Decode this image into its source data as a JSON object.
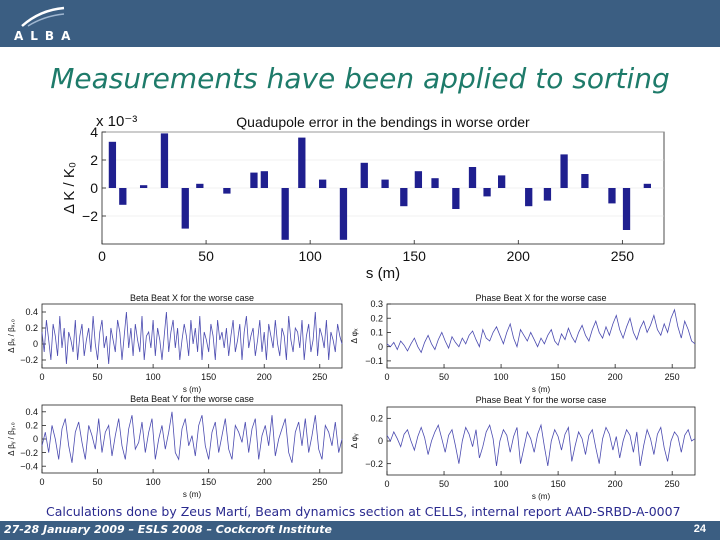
{
  "header": {
    "logo_text": "ALBA"
  },
  "slide": {
    "title": "Measurements have been applied to sorting",
    "caption": "Calculations done by Zeus Martí, Beam dynamics section at CELLS, internal report AAD-SRBD-A-0007",
    "footer_left": "27-28 January 2009 – ESLS 2008 – Cockcroft Institute",
    "page_number": "24"
  },
  "chart_data": [
    {
      "type": "bar",
      "title": "Quadupole error in the bendings in worse order",
      "xlabel": "s (m)",
      "ylabel": "Δ K / K₀",
      "y_multiplier": "x 10⁻³",
      "xlim": [
        0,
        270
      ],
      "ylim": [
        -4,
        4
      ],
      "xticks": [
        0,
        50,
        100,
        150,
        200,
        250
      ],
      "yticks": [
        -2,
        0,
        2,
        4
      ],
      "ytick_labels": [
        "−2",
        "0",
        "2",
        "4"
      ],
      "color": "#1f1f8f",
      "x": [
        5,
        10,
        20,
        30,
        40,
        47,
        60,
        73,
        78,
        88,
        96,
        106,
        116,
        126,
        136,
        145,
        152,
        160,
        170,
        178,
        185,
        192,
        205,
        214,
        222,
        232,
        245,
        252,
        262
      ],
      "values": [
        3.3,
        -1.2,
        0.2,
        3.9,
        -2.9,
        0.3,
        -0.4,
        1.1,
        1.2,
        -3.7,
        3.6,
        0.6,
        -3.7,
        1.8,
        0.6,
        -1.3,
        1.2,
        0.7,
        -1.5,
        1.5,
        -0.6,
        0.9,
        -1.3,
        -0.9,
        2.4,
        1.0,
        -1.1,
        -3.0,
        0.3
      ]
    },
    {
      "type": "line",
      "title": "Beta Beat X for the worse case",
      "xlabel": "s (m)",
      "ylabel": "Δ βₓ / βₓ,₀",
      "xlim": [
        0,
        270
      ],
      "ylim": [
        -0.3,
        0.5
      ],
      "xticks": [
        0,
        50,
        100,
        150,
        200,
        250
      ],
      "yticks": [
        -0.2,
        0,
        0.2,
        0.4
      ],
      "ytick_labels": [
        "−0.2",
        "0",
        "0.2",
        "0.4"
      ],
      "color": "#4b4bb0",
      "x": [
        0,
        2,
        4,
        6,
        8,
        10,
        12,
        14,
        16,
        18,
        20,
        22,
        24,
        26,
        28,
        30,
        32,
        34,
        36,
        38,
        40,
        42,
        44,
        46,
        48,
        50,
        52,
        54,
        56,
        58,
        60,
        62,
        64,
        66,
        68,
        70,
        72,
        74,
        76,
        78,
        80,
        82,
        84,
        86,
        88,
        90,
        92,
        94,
        96,
        98,
        100,
        102,
        104,
        106,
        108,
        110,
        112,
        114,
        116,
        118,
        120,
        122,
        124,
        126,
        128,
        130,
        132,
        134,
        136,
        138,
        140,
        142,
        144,
        146,
        148,
        150,
        152,
        154,
        156,
        158,
        160,
        162,
        164,
        166,
        168,
        170,
        172,
        174,
        176,
        178,
        180,
        182,
        184,
        186,
        188,
        190,
        192,
        194,
        196,
        198,
        200,
        202,
        204,
        206,
        208,
        210,
        212,
        214,
        216,
        218,
        220,
        222,
        224,
        226,
        228,
        230,
        232,
        234,
        236,
        238,
        240,
        242,
        244,
        246,
        248,
        250,
        252,
        254,
        256,
        258,
        260,
        262,
        264,
        266,
        268,
        270
      ],
      "values": [
        0.15,
        -0.1,
        0.3,
        0.05,
        -0.2,
        0.25,
        0.1,
        -0.15,
        0.35,
        -0.05,
        0.2,
        -0.25,
        0.15,
        0.05,
        -0.1,
        0.3,
        -0.2,
        0.1,
        0.25,
        -0.15,
        0.05,
        0.2,
        -0.1,
        0.35,
        0.0,
        -0.2,
        0.15,
        0.3,
        -0.05,
        0.1,
        -0.25,
        0.2,
        0.05,
        -0.1,
        0.3,
        0.15,
        -0.2,
        0.1,
        0.4,
        -0.05,
        0.2,
        -0.15,
        0.25,
        0.05,
        -0.1,
        0.35,
        -0.2,
        0.1,
        0.15,
        -0.05,
        0.3,
        -0.15,
        0.2,
        0.05,
        -0.2,
        0.1,
        0.4,
        -0.1,
        0.15,
        0.3,
        -0.05,
        0.2,
        -0.2,
        0.05,
        0.25,
        0.1,
        -0.15,
        0.3,
        0.0,
        0.2,
        -0.1,
        0.35,
        -0.2,
        0.15,
        0.05,
        -0.1,
        0.25,
        0.1,
        -0.2,
        0.3,
        0.05,
        0.15,
        -0.05,
        0.2,
        -0.15,
        0.1,
        0.3,
        -0.1,
        0.05,
        0.25,
        -0.2,
        0.15,
        0.35,
        -0.05,
        0.1,
        0.2,
        -0.15,
        0.05,
        0.3,
        -0.1,
        0.15,
        -0.2,
        0.25,
        0.1,
        -0.05,
        0.3,
        0.0,
        -0.15,
        0.2,
        0.1,
        -0.2,
        0.35,
        0.05,
        -0.1,
        0.2,
        0.15,
        -0.05,
        0.3,
        -0.2,
        0.1,
        0.25,
        -0.1,
        0.05,
        0.4,
        -0.15,
        0.2,
        0.1,
        -0.05,
        0.3,
        -0.2,
        0.15,
        0.05,
        -0.1,
        0.25,
        0.1,
        0.0
      ]
    },
    {
      "type": "line",
      "title": "Phase Beat X for the worse case",
      "xlabel": "s (m)",
      "ylabel": "Δ φₓ",
      "xlim": [
        0,
        270
      ],
      "ylim": [
        -0.15,
        0.3
      ],
      "xticks": [
        0,
        50,
        100,
        150,
        200,
        250
      ],
      "yticks": [
        -0.1,
        0,
        0.1,
        0.2,
        0.3
      ],
      "ytick_labels": [
        "−0.1",
        "0",
        "0.1",
        "0.2",
        "0.3"
      ],
      "color": "#4b4bb0",
      "x": [
        0,
        3,
        6,
        9,
        12,
        15,
        18,
        21,
        24,
        27,
        30,
        33,
        36,
        39,
        42,
        45,
        48,
        51,
        54,
        57,
        60,
        63,
        66,
        69,
        72,
        75,
        78,
        81,
        84,
        87,
        90,
        93,
        96,
        99,
        102,
        105,
        108,
        111,
        114,
        117,
        120,
        123,
        126,
        129,
        132,
        135,
        138,
        141,
        144,
        147,
        150,
        153,
        156,
        159,
        162,
        165,
        168,
        171,
        174,
        177,
        180,
        183,
        186,
        189,
        192,
        195,
        198,
        201,
        204,
        207,
        210,
        213,
        216,
        219,
        222,
        225,
        228,
        231,
        234,
        237,
        240,
        243,
        246,
        249,
        252,
        255,
        258,
        261,
        264,
        267,
        270
      ],
      "values": [
        0.02,
        0.0,
        0.03,
        -0.02,
        0.04,
        0.01,
        -0.03,
        0.02,
        0.06,
        0.0,
        -0.04,
        0.03,
        0.08,
        0.02,
        -0.02,
        0.05,
        0.1,
        0.04,
        -0.01,
        0.07,
        0.03,
        0.0,
        0.06,
        0.02,
        0.08,
        0.11,
        0.05,
        0.0,
        0.12,
        0.06,
        0.04,
        0.1,
        0.14,
        0.08,
        0.02,
        0.1,
        0.16,
        0.06,
        0.0,
        0.12,
        0.08,
        0.04,
        0.1,
        0.05,
        0.0,
        0.06,
        0.02,
        0.08,
        0.12,
        0.04,
        0.01,
        0.09,
        0.05,
        0.13,
        0.07,
        0.03,
        0.1,
        0.15,
        0.08,
        0.04,
        0.12,
        0.18,
        0.1,
        0.06,
        0.14,
        0.08,
        0.16,
        0.22,
        0.12,
        0.06,
        0.14,
        0.2,
        0.1,
        0.05,
        0.13,
        0.18,
        0.1,
        0.15,
        0.22,
        0.12,
        0.08,
        0.16,
        0.1,
        0.2,
        0.26,
        0.14,
        0.06,
        0.18,
        0.12,
        0.04,
        0.02
      ]
    },
    {
      "type": "line",
      "title": "Beta Beat Y for the worse case",
      "xlabel": "s (m)",
      "ylabel": "Δ βᵧ / βᵧ,₀",
      "xlim": [
        0,
        270
      ],
      "ylim": [
        -0.5,
        0.5
      ],
      "xticks": [
        0,
        50,
        100,
        150,
        200,
        250
      ],
      "yticks": [
        -0.4,
        -0.2,
        0,
        0.2,
        0.4
      ],
      "ytick_labels": [
        "−0.4",
        "−0.2",
        "0",
        "0.2",
        "0.4"
      ],
      "color": "#4b4bb0",
      "x": [
        0,
        3,
        6,
        9,
        12,
        15,
        18,
        21,
        24,
        27,
        30,
        33,
        36,
        39,
        42,
        45,
        48,
        51,
        54,
        57,
        60,
        63,
        66,
        69,
        72,
        75,
        78,
        81,
        84,
        87,
        90,
        93,
        96,
        99,
        102,
        105,
        108,
        111,
        114,
        117,
        120,
        123,
        126,
        129,
        132,
        135,
        138,
        141,
        144,
        147,
        150,
        153,
        156,
        159,
        162,
        165,
        168,
        171,
        174,
        177,
        180,
        183,
        186,
        189,
        192,
        195,
        198,
        201,
        204,
        207,
        210,
        213,
        216,
        219,
        222,
        225,
        228,
        231,
        234,
        237,
        240,
        243,
        246,
        249,
        252,
        255,
        258,
        261,
        264,
        267,
        270
      ],
      "values": [
        -0.1,
        0.1,
        -0.2,
        0.2,
        0.0,
        -0.3,
        0.15,
        0.3,
        -0.1,
        -0.35,
        0.1,
        0.25,
        -0.05,
        -0.3,
        0.2,
        0.05,
        -0.15,
        0.3,
        -0.2,
        0.1,
        0.2,
        -0.25,
        0.05,
        0.3,
        -0.1,
        -0.3,
        0.15,
        0.35,
        -0.15,
        -0.05,
        0.25,
        -0.2,
        0.1,
        0.3,
        -0.3,
        0.0,
        0.2,
        -0.15,
        0.1,
        0.4,
        -0.2,
        -0.3,
        0.15,
        0.3,
        -0.1,
        0.05,
        -0.25,
        0.2,
        0.35,
        -0.1,
        -0.3,
        0.1,
        0.25,
        -0.2,
        0.05,
        0.3,
        -0.15,
        -0.3,
        0.2,
        0.1,
        -0.05,
        0.25,
        -0.2,
        0.15,
        0.3,
        -0.3,
        0.05,
        0.2,
        -0.1,
        0.35,
        -0.25,
        0.0,
        0.15,
        0.3,
        -0.2,
        -0.35,
        0.1,
        0.25,
        -0.1,
        0.3,
        -0.2,
        0.05,
        0.35,
        -0.15,
        -0.3,
        0.2,
        0.1,
        -0.1,
        0.25,
        -0.2,
        0.0
      ]
    },
    {
      "type": "line",
      "title": "Phase Beat Y for the worse case",
      "xlabel": "s (m)",
      "ylabel": "Δ φᵧ",
      "xlim": [
        0,
        270
      ],
      "ylim": [
        -0.3,
        0.3
      ],
      "xticks": [
        0,
        50,
        100,
        150,
        200,
        250
      ],
      "yticks": [
        -0.2,
        0,
        0.2
      ],
      "ytick_labels": [
        "−0.2",
        "0",
        "0.2"
      ],
      "color": "#4b4bb0",
      "x": [
        0,
        3,
        6,
        9,
        12,
        15,
        18,
        21,
        24,
        27,
        30,
        33,
        36,
        39,
        42,
        45,
        48,
        51,
        54,
        57,
        60,
        63,
        66,
        69,
        72,
        75,
        78,
        81,
        84,
        87,
        90,
        93,
        96,
        99,
        102,
        105,
        108,
        111,
        114,
        117,
        120,
        123,
        126,
        129,
        132,
        135,
        138,
        141,
        144,
        147,
        150,
        153,
        156,
        159,
        162,
        165,
        168,
        171,
        174,
        177,
        180,
        183,
        186,
        189,
        192,
        195,
        198,
        201,
        204,
        207,
        210,
        213,
        216,
        219,
        222,
        225,
        228,
        231,
        234,
        237,
        240,
        243,
        246,
        249,
        252,
        255,
        258,
        261,
        264,
        267,
        270
      ],
      "values": [
        0.05,
        0.0,
        0.08,
        0.02,
        -0.05,
        0.06,
        0.1,
        0.0,
        -0.08,
        0.04,
        0.12,
        0.03,
        -0.12,
        0.0,
        0.08,
        0.14,
        0.02,
        -0.1,
        0.05,
        0.1,
        -0.04,
        -0.2,
        0.0,
        0.12,
        0.06,
        -0.05,
        0.1,
        -0.15,
        -0.05,
        0.08,
        0.14,
        0.02,
        -0.22,
        0.0,
        0.1,
        0.05,
        -0.1,
        0.04,
        0.12,
        -0.2,
        -0.06,
        0.08,
        0.02,
        -0.1,
        0.06,
        0.14,
        -0.05,
        -0.22,
        0.0,
        0.1,
        0.04,
        -0.08,
        0.06,
        0.12,
        -0.18,
        -0.04,
        0.08,
        0.02,
        -0.12,
        0.05,
        0.1,
        -0.06,
        -0.2,
        0.02,
        0.12,
        0.06,
        -0.08,
        0.04,
        -0.15,
        0.0,
        0.1,
        0.05,
        -0.1,
        0.08,
        -0.22,
        -0.04,
        0.1,
        0.02,
        -0.12,
        0.06,
        0.12,
        -0.06,
        -0.18,
        0.0,
        0.08,
        0.04,
        -0.1,
        0.05,
        0.1,
        0.0,
        0.02
      ]
    }
  ]
}
